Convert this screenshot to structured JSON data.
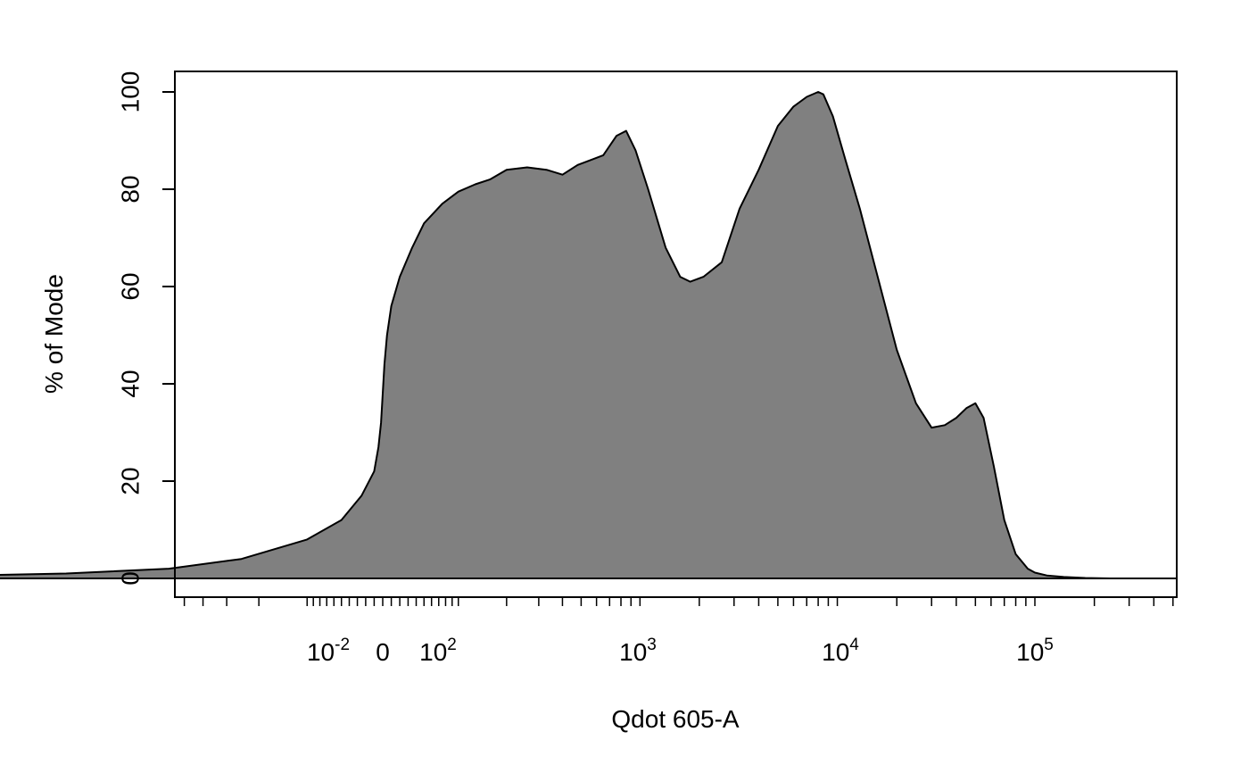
{
  "chart_data": {
    "type": "area",
    "xlabel": "Qdot 605-A",
    "ylabel": "% of Mode",
    "x_scale": "biexponential",
    "ylim": [
      0,
      100
    ],
    "y_ticks": [
      0,
      20,
      40,
      60,
      80,
      100
    ],
    "x_tick_labels": [
      {
        "base": "10",
        "exp": "-2"
      },
      {
        "base": "0",
        "exp": ""
      },
      {
        "base": "10",
        "exp": "2"
      },
      {
        "base": "10",
        "exp": "3"
      },
      {
        "base": "10",
        "exp": "4"
      },
      {
        "base": "10",
        "exp": "5"
      }
    ],
    "fill_color": "#808080",
    "line_color": "#000000",
    "series": [
      {
        "x": [
          -120000,
          -40000,
          -8000,
          -2000,
          -600,
          -250,
          -100,
          -50,
          -25,
          -10,
          -5,
          -2,
          0,
          2,
          5,
          10,
          20,
          35,
          50,
          75,
          100,
          130,
          160,
          200,
          260,
          330,
          400,
          480,
          560,
          650,
          760,
          850,
          950,
          1100,
          1350,
          1600,
          1800,
          2100,
          2600,
          3200,
          4000,
          5000,
          6000,
          7000,
          8000,
          8500,
          9500,
          11000,
          13000,
          16000,
          20000,
          25000,
          30000,
          35000,
          40000,
          45000,
          50000,
          55000,
          62000,
          70000,
          80000,
          92000,
          100000,
          115000,
          140000,
          180000,
          240000
        ],
        "y": [
          0,
          0.2,
          0.5,
          1,
          2,
          4,
          8,
          12,
          17,
          22,
          27,
          32,
          38,
          44,
          50,
          56,
          62,
          68,
          73,
          77,
          79.5,
          81,
          82,
          84,
          84.5,
          84,
          83,
          85,
          86,
          87,
          91,
          92,
          88,
          80,
          68,
          62,
          61,
          62,
          65,
          76,
          84,
          93,
          97,
          99,
          100,
          99.5,
          95,
          86,
          76,
          62,
          47,
          36,
          31,
          31.5,
          33,
          35,
          36,
          33,
          23,
          12,
          5,
          2,
          1.2,
          0.6,
          0.3,
          0.1,
          0
        ]
      }
    ]
  }
}
